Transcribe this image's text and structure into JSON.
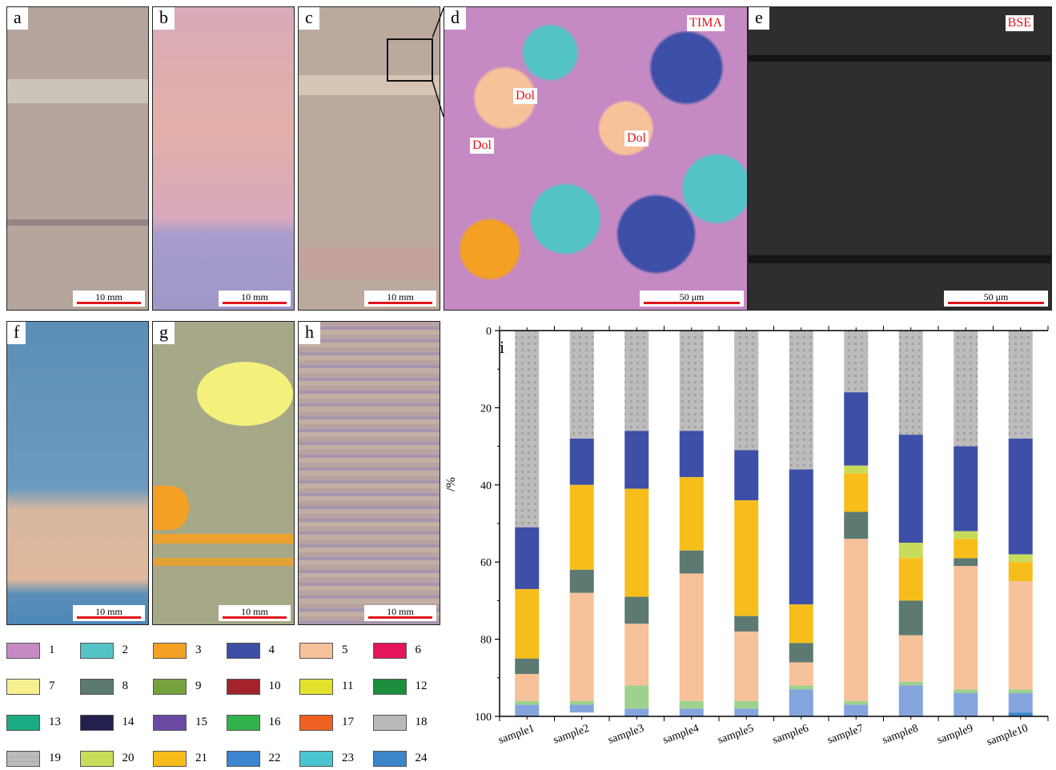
{
  "panels": {
    "a": {
      "label": "a",
      "scale": "10 mm",
      "bg": "#b8a89c"
    },
    "b": {
      "label": "b",
      "scale": "10 mm",
      "bg": "#d9a8b8"
    },
    "c": {
      "label": "c",
      "scale": "10 mm",
      "bg": "#bfa99d"
    },
    "d": {
      "label": "d",
      "scale": "50 μm",
      "tag": "TIMA",
      "dol": [
        "Dol",
        "Dol",
        "Dol"
      ]
    },
    "e": {
      "label": "e",
      "scale": "50 μm",
      "tag": "BSE"
    },
    "f": {
      "label": "f",
      "scale": "10 mm"
    },
    "g": {
      "label": "g",
      "scale": "10 mm"
    },
    "h": {
      "label": "h",
      "scale": "10 mm"
    },
    "i": {
      "label": "i"
    }
  },
  "legend": [
    {
      "n": "1",
      "color": "#c58ac4"
    },
    {
      "n": "2",
      "color": "#55c4c8"
    },
    {
      "n": "3",
      "color": "#f3a023"
    },
    {
      "n": "4",
      "color": "#3d4fa6"
    },
    {
      "n": "5",
      "color": "#f7c19a"
    },
    {
      "n": "6",
      "color": "#e5155b"
    },
    {
      "n": "7",
      "color": "#f6f090"
    },
    {
      "n": "8",
      "color": "#5c7a72"
    },
    {
      "n": "9",
      "color": "#76a23e"
    },
    {
      "n": "10",
      "color": "#a2232b"
    },
    {
      "n": "11",
      "color": "#e2e22c"
    },
    {
      "n": "12",
      "color": "#1d8e3e"
    },
    {
      "n": "13",
      "color": "#1aab83"
    },
    {
      "n": "14",
      "color": "#22204d"
    },
    {
      "n": "15",
      "color": "#6a4aa2"
    },
    {
      "n": "16",
      "color": "#32b24a"
    },
    {
      "n": "17",
      "color": "#ee6122"
    },
    {
      "n": "18",
      "color": "#b9babc"
    },
    {
      "n": "19",
      "color": "#bcbcbc"
    },
    {
      "n": "20",
      "color": "#c8dc5a"
    },
    {
      "n": "21",
      "color": "#f7be1b"
    },
    {
      "n": "22",
      "color": "#3c86cf"
    },
    {
      "n": "23",
      "color": "#4cc5d3"
    },
    {
      "n": "24",
      "color": "#3a86c9"
    }
  ],
  "chart_data": {
    "type": "bar",
    "stacked": true,
    "orientation": "vertical, y axis inverted (0 at top, 100 at bottom)",
    "ylabel": "/%",
    "ylim": [
      0,
      100
    ],
    "yticks": [
      "0",
      "20",
      "40",
      "60",
      "80",
      "100"
    ],
    "categories": [
      "sample1",
      "sample2",
      "sample3",
      "sample4",
      "sample5",
      "sample6",
      "sample7",
      "sample8",
      "sample9",
      "sample10"
    ],
    "series": [
      {
        "name": "19",
        "color": "#bcbcbc",
        "values": [
          51,
          28,
          26,
          26,
          31,
          36,
          16,
          27,
          30,
          28
        ]
      },
      {
        "name": "4",
        "color": "#3d4fa6",
        "values": [
          16,
          12,
          15,
          12,
          13,
          35,
          19,
          28,
          22,
          30
        ]
      },
      {
        "name": "11",
        "color": "#c8dc5a",
        "values": [
          0,
          0,
          0,
          0,
          0,
          0,
          2,
          0,
          2,
          0
        ]
      },
      {
        "name": "20",
        "color": "#c8dc5a",
        "values": [
          0,
          0,
          0,
          0,
          0,
          0,
          0,
          4,
          0,
          2
        ]
      },
      {
        "name": "21",
        "color": "#f7be1b",
        "values": [
          18,
          22,
          28,
          19,
          30,
          10,
          10,
          11,
          5,
          5
        ]
      },
      {
        "name": "8",
        "color": "#5c7a72",
        "values": [
          4,
          6,
          7,
          6,
          4,
          5,
          7,
          9,
          2,
          0
        ]
      },
      {
        "name": "5",
        "color": "#f7c19a",
        "values": [
          7,
          28,
          16,
          33,
          18,
          6,
          42,
          12,
          32,
          28
        ]
      },
      {
        "name": "16",
        "color": "#9fd18e",
        "values": [
          1,
          1,
          6,
          2,
          2,
          1,
          1,
          1,
          1,
          1
        ]
      },
      {
        "name": "22",
        "color": "#84a4dd",
        "values": [
          3,
          2,
          2,
          2,
          2,
          7,
          3,
          8,
          6,
          5
        ]
      },
      {
        "name": "24",
        "color": "#3a86c9",
        "values": [
          0,
          0,
          0,
          0,
          0,
          0,
          0,
          0,
          0,
          1
        ]
      }
    ]
  }
}
